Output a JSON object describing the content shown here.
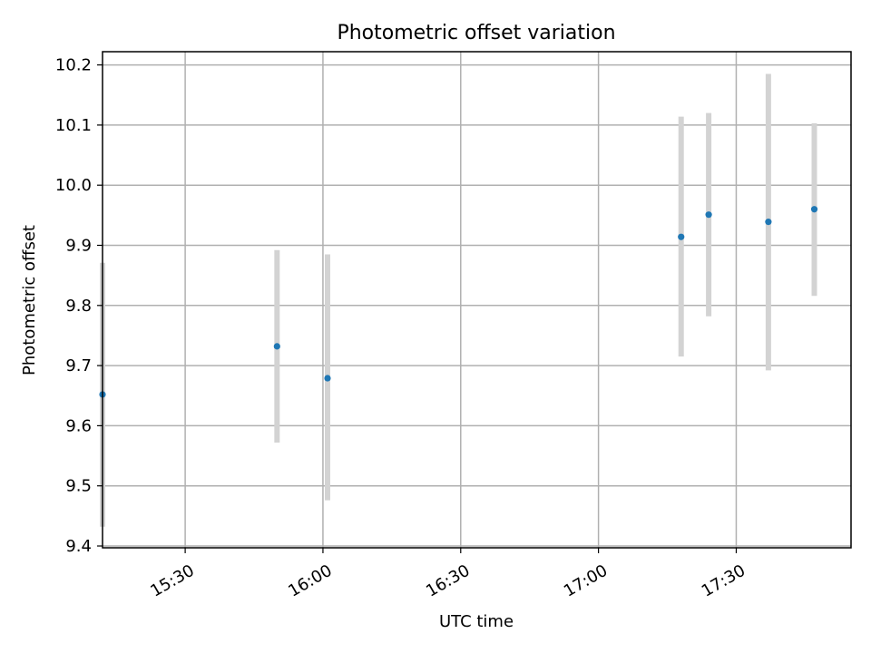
{
  "chart_data": {
    "type": "scatter",
    "title": "Photometric offset variation",
    "xlabel": "UTC time",
    "ylabel": "Photometric offset",
    "x_ticks": [
      "15:30",
      "16:00",
      "16:30",
      "17:00",
      "17:30"
    ],
    "y_ticks": [
      "9.4",
      "9.5",
      "9.6",
      "9.7",
      "9.8",
      "9.9",
      "10.0",
      "10.1",
      "10.2"
    ],
    "xlim": [
      "15:12",
      "17:55"
    ],
    "ylim": [
      9.397,
      10.222
    ],
    "grid": true,
    "series": [
      {
        "x": [
          "15:12",
          "15:50",
          "16:01",
          "17:18",
          "17:24",
          "17:37",
          "17:47"
        ],
        "y": [
          9.652,
          9.732,
          9.679,
          9.914,
          9.951,
          9.939,
          9.96
        ],
        "yerr_low": [
          9.432,
          9.572,
          9.476,
          9.715,
          9.782,
          9.692,
          9.816
        ],
        "yerr_high": [
          9.871,
          9.892,
          9.885,
          10.114,
          10.12,
          10.185,
          10.103
        ]
      }
    ],
    "colors": {
      "marker": "#1f77b4",
      "errorbar": "#d3d3d3",
      "grid": "#b0b0b0",
      "axes": "#000000"
    }
  }
}
